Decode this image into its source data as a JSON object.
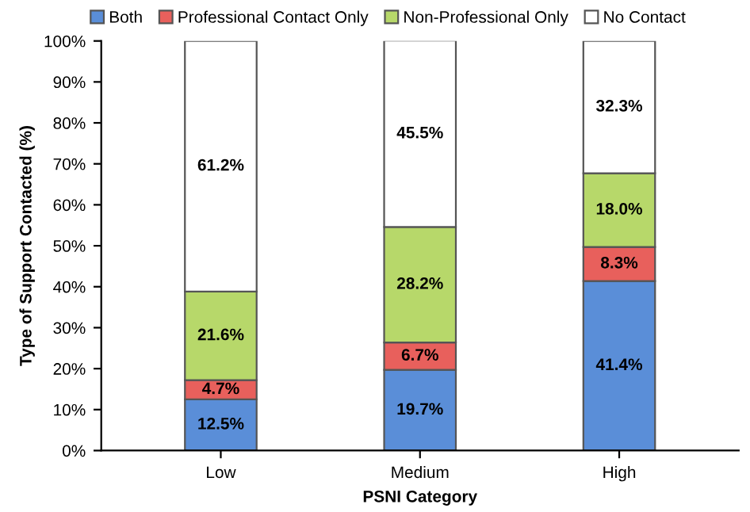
{
  "chart_data": {
    "type": "bar",
    "stacked": true,
    "xlabel": "PSNI Category",
    "ylabel": "Type of Support Contacted (%)",
    "categories": [
      "Low",
      "Medium",
      "High"
    ],
    "series": [
      {
        "name": "Both",
        "color": "#5a8ed8",
        "values": [
          12.5,
          19.7,
          41.4
        ],
        "value_labels": [
          "12.5%",
          "19.7%",
          "41.4%"
        ]
      },
      {
        "name": "Professional Contact Only",
        "color": "#e8605c",
        "values": [
          4.7,
          6.7,
          8.3
        ],
        "value_labels": [
          "4.7%",
          "6.7%",
          "8.3%"
        ]
      },
      {
        "name": "Non-Professional Only",
        "color": "#b7d86a",
        "values": [
          21.6,
          28.2,
          18.0
        ],
        "value_labels": [
          "21.6%",
          "28.2%",
          "18.0%"
        ]
      },
      {
        "name": "No Contact",
        "color": "#ffffff",
        "values": [
          61.2,
          45.5,
          32.3
        ],
        "value_labels": [
          "61.2%",
          "45.5%",
          "32.3%"
        ]
      }
    ],
    "ylim": [
      0,
      100
    ],
    "yticks": [
      {
        "value": 0,
        "label": "0%"
      },
      {
        "value": 10,
        "label": "10%"
      },
      {
        "value": 20,
        "label": "20%"
      },
      {
        "value": 30,
        "label": "30%"
      },
      {
        "value": 40,
        "label": "40%"
      },
      {
        "value": 50,
        "label": "50%"
      },
      {
        "value": 60,
        "label": "60%"
      },
      {
        "value": 70,
        "label": "70%"
      },
      {
        "value": 80,
        "label": "80%"
      },
      {
        "value": 90,
        "label": "90%"
      },
      {
        "value": 100,
        "label": "100%"
      }
    ],
    "legend": "top",
    "grid": false
  }
}
